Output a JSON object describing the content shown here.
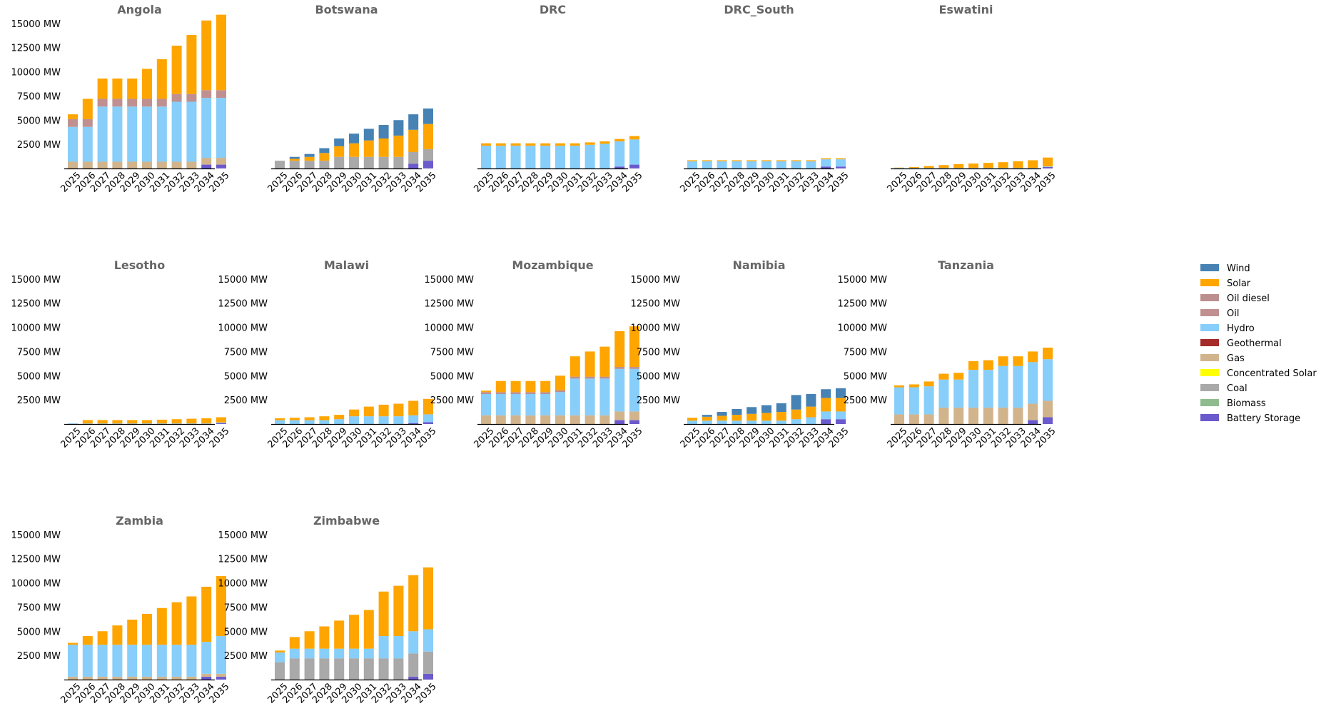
{
  "chart_data": {
    "type": "bar",
    "stacked": true,
    "unit": "MW",
    "x": [
      "2025",
      "2026",
      "2027",
      "2028",
      "2029",
      "2030",
      "2031",
      "2032",
      "2033",
      "2034",
      "2035"
    ],
    "ylim": [
      0,
      15500
    ],
    "yticks": [
      "2500 MW",
      "5000 MW",
      "7500 MW",
      "10000 MW",
      "12500 MW",
      "15000 MW"
    ],
    "ytick_values": [
      2500,
      5000,
      7500,
      10000,
      12500,
      15000
    ],
    "grid": false,
    "legend_position": "right",
    "series_legend": [
      {
        "name": "Wind",
        "color": "#4682b4"
      },
      {
        "name": "Solar",
        "color": "#ffa500"
      },
      {
        "name": "Oil diesel",
        "color": "#bc8f8f"
      },
      {
        "name": "Oil",
        "color": "#c09090"
      },
      {
        "name": "Hydro",
        "color": "#87cefa"
      },
      {
        "name": "Geothermal",
        "color": "#a52a2a"
      },
      {
        "name": "Gas",
        "color": "#d2b48c"
      },
      {
        "name": "Concentrated Solar",
        "color": "#ffff00"
      },
      {
        "name": "Coal",
        "color": "#a9a9a9"
      },
      {
        "name": "Biomass",
        "color": "#8fbc8f"
      },
      {
        "name": "Battery Storage",
        "color": "#6a5acd"
      }
    ],
    "panels": [
      {
        "title": "Angola",
        "show_yticks": true,
        "series": {
          "Battery Storage": [
            0,
            0,
            0,
            0,
            0,
            0,
            0,
            0,
            0,
            400,
            400
          ],
          "Gas": [
            700,
            700,
            700,
            700,
            700,
            700,
            700,
            700,
            700,
            700,
            700
          ],
          "Hydro": [
            3600,
            3600,
            5700,
            5700,
            5700,
            5700,
            5700,
            6200,
            6200,
            6200,
            6200
          ],
          "Oil": [
            800,
            800,
            800,
            800,
            800,
            800,
            800,
            800,
            800,
            800,
            800
          ],
          "Solar": [
            500,
            2100,
            2100,
            2100,
            2100,
            3100,
            4100,
            5000,
            6100,
            7200,
            7800
          ]
        }
      },
      {
        "title": "Botswana",
        "show_yticks": false,
        "series": {
          "Battery Storage": [
            0,
            0,
            0,
            0,
            0,
            0,
            0,
            0,
            0,
            500,
            800
          ],
          "Coal": [
            800,
            800,
            800,
            800,
            1200,
            1200,
            1200,
            1200,
            1200,
            1200,
            1200
          ],
          "Solar": [
            0,
            200,
            400,
            800,
            1100,
            1400,
            1700,
            1900,
            2200,
            2300,
            2600
          ],
          "Wind": [
            0,
            200,
            300,
            500,
            800,
            1000,
            1200,
            1400,
            1600,
            1600,
            1600
          ]
        }
      },
      {
        "title": "DRC",
        "show_yticks": false,
        "series": {
          "Battery Storage": [
            0,
            0,
            0,
            0,
            0,
            0,
            0,
            0,
            0,
            200,
            400
          ],
          "Hydro": [
            2350,
            2350,
            2350,
            2350,
            2350,
            2350,
            2350,
            2450,
            2550,
            2600,
            2600
          ],
          "Solar": [
            250,
            250,
            250,
            250,
            250,
            250,
            250,
            250,
            250,
            250,
            350
          ]
        }
      },
      {
        "title": "DRC_South",
        "show_yticks": false,
        "series": {
          "Battery Storage": [
            0,
            0,
            0,
            0,
            0,
            0,
            0,
            0,
            0,
            200,
            200
          ],
          "Hydro": [
            750,
            750,
            750,
            750,
            750,
            750,
            750,
            750,
            750,
            750,
            750
          ],
          "Solar": [
            100,
            100,
            100,
            100,
            100,
            100,
            100,
            100,
            100,
            100,
            100
          ]
        }
      },
      {
        "title": "Eswatini",
        "show_yticks": false,
        "series": {
          "Battery Storage": [
            0,
            0,
            0,
            0,
            0,
            0,
            0,
            0,
            0,
            0,
            150
          ],
          "Hydro": [
            60,
            60,
            60,
            60,
            60,
            60,
            60,
            60,
            60,
            60,
            60
          ],
          "Solar": [
            30,
            90,
            190,
            290,
            390,
            450,
            520,
            590,
            680,
            790,
            920
          ]
        }
      },
      {
        "title": "Lesotho",
        "show_yticks": true,
        "series": {
          "Battery Storage": [
            0,
            0,
            0,
            0,
            0,
            0,
            0,
            0,
            0,
            0,
            100
          ],
          "Hydro": [
            60,
            60,
            60,
            60,
            60,
            60,
            60,
            60,
            60,
            60,
            60
          ],
          "Solar": [
            0,
            350,
            350,
            350,
            350,
            350,
            390,
            440,
            490,
            540,
            540
          ]
        }
      },
      {
        "title": "Malawi",
        "show_yticks": true,
        "series": {
          "Battery Storage": [
            0,
            0,
            0,
            0,
            0,
            0,
            0,
            0,
            0,
            100,
            200
          ],
          "Hydro": [
            400,
            400,
            400,
            400,
            500,
            800,
            800,
            800,
            800,
            800,
            800
          ],
          "Solar": [
            200,
            250,
            300,
            400,
            450,
            700,
            1000,
            1200,
            1300,
            1500,
            1600
          ]
        }
      },
      {
        "title": "Mozambique",
        "show_yticks": true,
        "series": {
          "Battery Storage": [
            0,
            0,
            0,
            0,
            0,
            0,
            0,
            0,
            0,
            400,
            400
          ],
          "Gas": [
            900,
            900,
            900,
            900,
            900,
            900,
            900,
            900,
            900,
            900,
            900
          ],
          "Hydro": [
            2200,
            2200,
            2200,
            2200,
            2200,
            2400,
            3800,
            3800,
            3800,
            4400,
            4400
          ],
          "Oil diesel": [
            200,
            200,
            200,
            200,
            200,
            200,
            200,
            200,
            200,
            200,
            200
          ],
          "Solar": [
            150,
            1150,
            1150,
            1150,
            1150,
            1500,
            2100,
            2600,
            3100,
            3700,
            4200
          ]
        }
      },
      {
        "title": "Namibia",
        "show_yticks": true,
        "series": {
          "Battery Storage": [
            0,
            0,
            0,
            0,
            0,
            0,
            0,
            0,
            0,
            500,
            500
          ],
          "Hydro": [
            350,
            350,
            350,
            350,
            350,
            350,
            350,
            500,
            700,
            800,
            800
          ],
          "Solar": [
            300,
            400,
            500,
            600,
            700,
            800,
            900,
            1000,
            1100,
            1400,
            1400
          ],
          "Wind": [
            0,
            200,
            400,
            600,
            700,
            800,
            900,
            1500,
            1300,
            900,
            1000
          ]
        }
      },
      {
        "title": "Tanzania",
        "show_yticks": true,
        "series": {
          "Battery Storage": [
            0,
            0,
            0,
            0,
            0,
            0,
            0,
            0,
            0,
            400,
            700
          ],
          "Gas": [
            1000,
            1000,
            1000,
            1700,
            1700,
            1700,
            1700,
            1700,
            1700,
            1700,
            1700
          ],
          "Hydro": [
            2800,
            2800,
            2900,
            2900,
            2900,
            3900,
            3900,
            4300,
            4300,
            4300,
            4300
          ],
          "Solar": [
            200,
            300,
            500,
            600,
            700,
            900,
            1000,
            1000,
            1000,
            1100,
            1200
          ]
        }
      },
      {
        "title": "Zambia",
        "show_yticks": true,
        "series": {
          "Battery Storage": [
            0,
            0,
            0,
            0,
            0,
            0,
            0,
            0,
            0,
            300,
            300
          ],
          "Gas": [
            300,
            300,
            300,
            300,
            300,
            300,
            300,
            300,
            300,
            300,
            300
          ],
          "Hydro": [
            3300,
            3300,
            3300,
            3300,
            3300,
            3300,
            3300,
            3300,
            3300,
            3300,
            3900
          ],
          "Solar": [
            200,
            900,
            1400,
            2000,
            2600,
            3200,
            3800,
            4400,
            5000,
            5700,
            6200
          ]
        }
      },
      {
        "title": "Zimbabwe",
        "show_yticks": true,
        "series": {
          "Battery Storage": [
            0,
            0,
            0,
            0,
            0,
            0,
            0,
            0,
            0,
            300,
            600
          ],
          "Coal": [
            1800,
            2200,
            2200,
            2200,
            2200,
            2200,
            2200,
            2200,
            2200,
            2400,
            2300
          ],
          "Hydro": [
            1000,
            1000,
            1000,
            1000,
            1000,
            1000,
            1000,
            2300,
            2300,
            2300,
            2300
          ],
          "Solar": [
            200,
            1200,
            1800,
            2300,
            2900,
            3500,
            4000,
            4600,
            5200,
            5800,
            6400
          ]
        }
      }
    ]
  }
}
